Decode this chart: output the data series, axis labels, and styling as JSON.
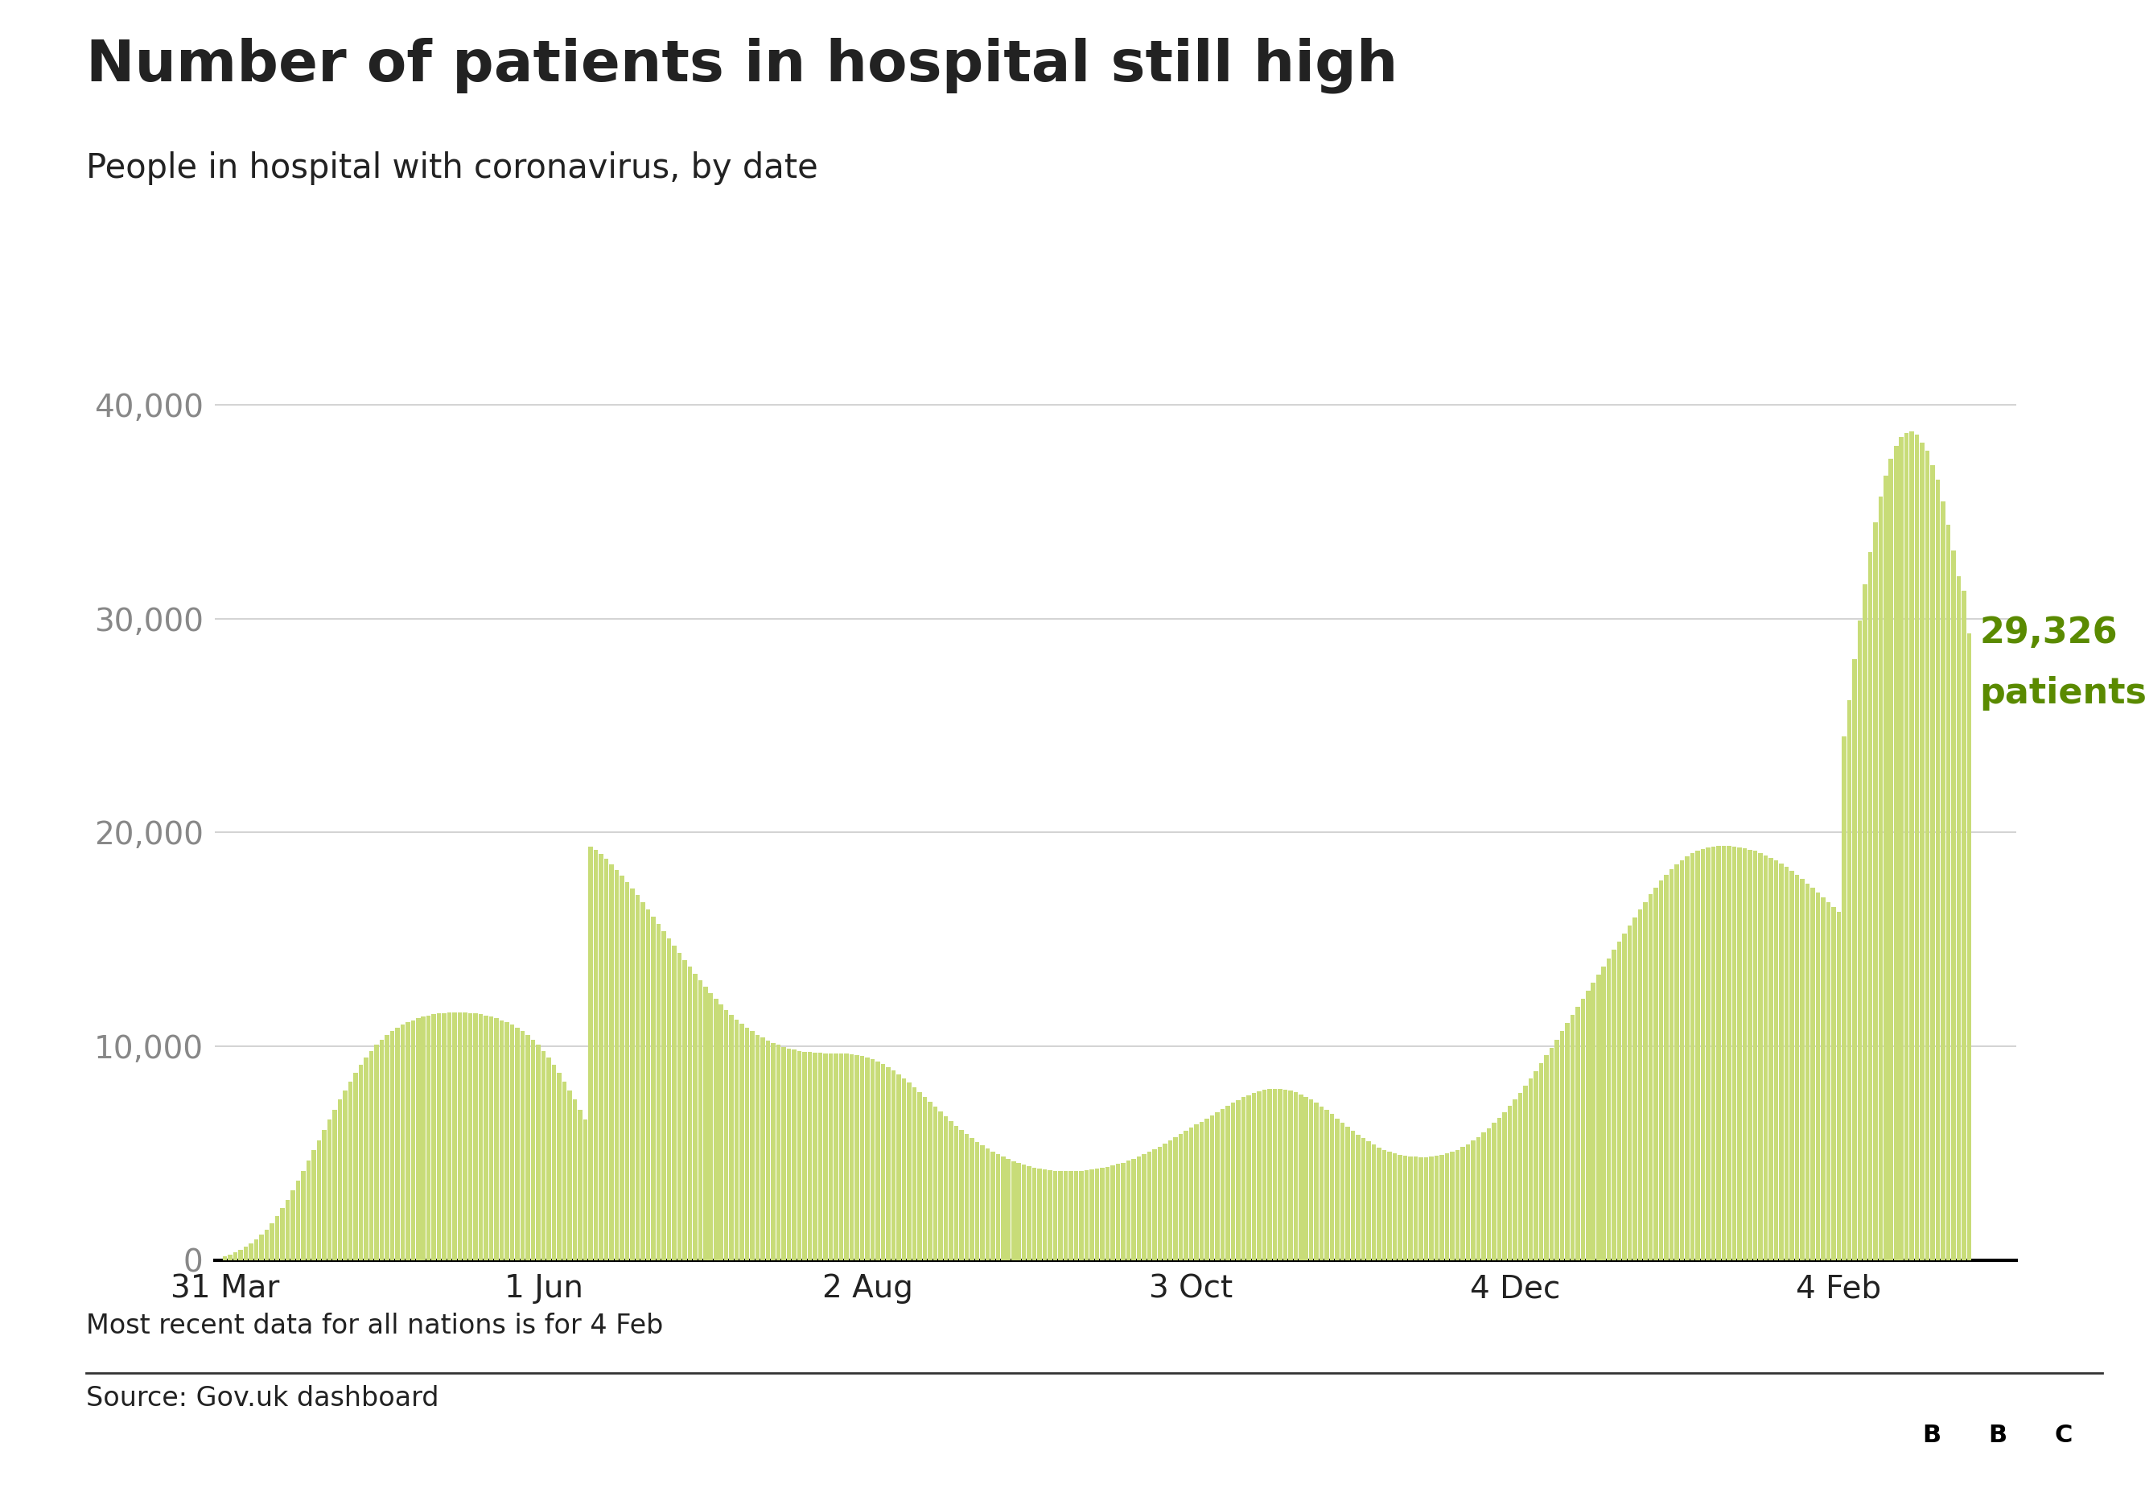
{
  "title": "Number of patients in hospital still high",
  "subtitle": "People in hospital with coronavirus, by date",
  "annotation_line1": "29,326",
  "annotation_line2": "patients",
  "annotation_color": "#5a8a00",
  "note": "Most recent data for all nations is for 4 Feb",
  "source": "Source: Gov.uk dashboard",
  "bar_color": "#c8dc78",
  "axis_line_color": "#000000",
  "grid_color": "#cccccc",
  "text_color": "#222222",
  "ytick_color": "#888888",
  "xtick_labels": [
    "31 Mar",
    "1 Jun",
    "2 Aug",
    "3 Oct",
    "4 Dec",
    "4 Feb"
  ],
  "ylim": [
    0,
    42000
  ],
  "yticks": [
    0,
    10000,
    20000,
    30000,
    40000
  ],
  "ytick_labels": [
    "0",
    "10,000",
    "20,000",
    "30,000",
    "40,000"
  ],
  "background_color": "#ffffff",
  "title_fontsize": 52,
  "subtitle_fontsize": 30,
  "tick_fontsize": 28,
  "annotation_fontsize": 32,
  "note_fontsize": 24,
  "source_fontsize": 24,
  "values": [
    157,
    260,
    371,
    488,
    623,
    780,
    964,
    1180,
    1430,
    1720,
    2050,
    2420,
    2820,
    3250,
    3700,
    4170,
    4650,
    5130,
    5610,
    6090,
    6570,
    7040,
    7500,
    7940,
    8360,
    8760,
    9130,
    9470,
    9780,
    10060,
    10310,
    10530,
    10720,
    10880,
    11010,
    11120,
    11220,
    11310,
    11380,
    11440,
    11490,
    11530,
    11560,
    11580,
    11590,
    11590,
    11580,
    11560,
    11530,
    11490,
    11440,
    11380,
    11310,
    11220,
    11120,
    11010,
    10880,
    10720,
    10530,
    10310,
    10060,
    9780,
    9470,
    9130,
    8760,
    8360,
    7940,
    7500,
    7040,
    6570,
    19350,
    19180,
    18980,
    18760,
    18520,
    18260,
    17980,
    17680,
    17380,
    17060,
    16740,
    16410,
    16080,
    15740,
    15400,
    15060,
    14720,
    14380,
    14040,
    13710,
    13390,
    13080,
    12780,
    12490,
    12220,
    11960,
    11710,
    11480,
    11260,
    11060,
    10870,
    10700,
    10540,
    10400,
    10270,
    10160,
    10060,
    9970,
    9900,
    9840,
    9790,
    9750,
    9720,
    9700,
    9690,
    9680,
    9670,
    9670,
    9660,
    9650,
    9640,
    9600,
    9550,
    9490,
    9400,
    9290,
    9170,
    9020,
    8860,
    8680,
    8490,
    8290,
    8080,
    7860,
    7630,
    7400,
    7170,
    6940,
    6710,
    6490,
    6280,
    6080,
    5880,
    5700,
    5530,
    5370,
    5220,
    5080,
    4950,
    4830,
    4720,
    4620,
    4530,
    4450,
    4380,
    4320,
    4270,
    4230,
    4200,
    4170,
    4160,
    4150,
    4150,
    4160,
    4180,
    4200,
    4230,
    4270,
    4310,
    4360,
    4420,
    4490,
    4560,
    4650,
    4740,
    4840,
    4950,
    5060,
    5180,
    5310,
    5450,
    5590,
    5730,
    5880,
    6030,
    6180,
    6330,
    6480,
    6630,
    6780,
    6930,
    7080,
    7220,
    7360,
    7490,
    7610,
    7720,
    7810,
    7890,
    7950,
    7990,
    8010,
    8010,
    7980,
    7930,
    7860,
    7760,
    7640,
    7510,
    7360,
    7190,
    7010,
    6820,
    6620,
    6420,
    6230,
    6040,
    5860,
    5690,
    5540,
    5400,
    5270,
    5160,
    5070,
    4990,
    4930,
    4880,
    4850,
    4830,
    4820,
    4820,
    4840,
    4870,
    4920,
    4980,
    5060,
    5160,
    5280,
    5420,
    5580,
    5760,
    5960,
    6170,
    6410,
    6660,
    6930,
    7210,
    7510,
    7820,
    8150,
    8490,
    8840,
    9200,
    9570,
    9940,
    10320,
    10700,
    11080,
    11460,
    11840,
    12220,
    12600,
    12980,
    13360,
    13740,
    14120,
    14500,
    14880,
    15260,
    15640,
    16020,
    16390,
    16750,
    17100,
    17430,
    17740,
    18020,
    18280,
    18510,
    18710,
    18880,
    19020,
    19140,
    19230,
    19300,
    19350,
    19370,
    19380,
    19370,
    19340,
    19310,
    19260,
    19200,
    19130,
    19040,
    18940,
    18820,
    18690,
    18540,
    18380,
    18210,
    18020,
    17830,
    17620,
    17410,
    17190,
    16970,
    16740,
    16510,
    16280,
    24500,
    26200,
    28100,
    29900,
    31600,
    33100,
    34500,
    35700,
    36700,
    37500,
    38100,
    38500,
    38700,
    38750,
    38600,
    38250,
    37850,
    37200,
    36500,
    35500,
    34400,
    33200,
    32000,
    31326,
    29326
  ]
}
